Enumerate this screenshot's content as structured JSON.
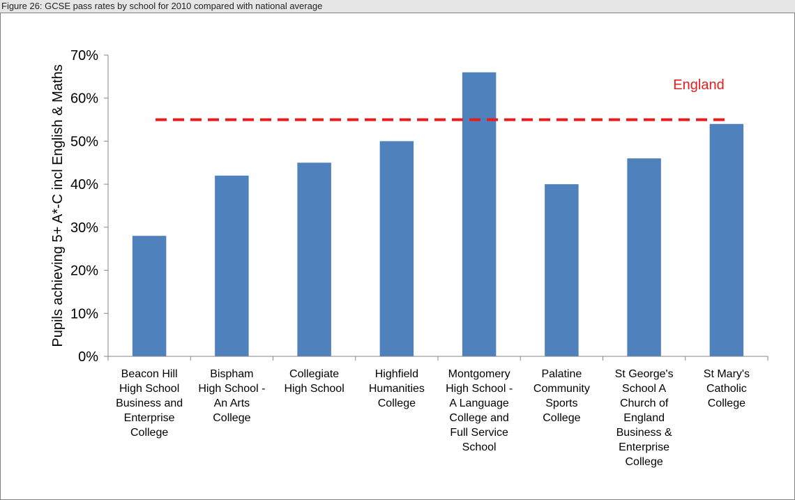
{
  "caption": "Figure 26: GCSE pass rates by school for 2010 compared with national average",
  "chart_data": {
    "type": "bar",
    "categories": [
      [
        "Beacon Hill",
        "High School",
        "Business and",
        "Enterprise",
        "College"
      ],
      [
        "Bispham",
        "High School -",
        "An Arts",
        "College"
      ],
      [
        "Collegiate",
        "High School"
      ],
      [
        "Highfield",
        "Humanities",
        "College"
      ],
      [
        "Montgomery",
        "High School -",
        "A Language",
        "College and",
        "Full Service",
        "School"
      ],
      [
        "Palatine",
        "Community",
        "Sports",
        "College"
      ],
      [
        "St George's",
        "School A",
        "Church of",
        "England",
        "Business &",
        "Enterprise",
        "College"
      ],
      [
        "St Mary's",
        "Catholic",
        "College"
      ]
    ],
    "values": [
      28,
      42,
      45,
      50,
      66,
      40,
      46,
      54
    ],
    "ylabel": "Pupils achieving 5+ A*-C incl English & Maths",
    "ylim": [
      0,
      70
    ],
    "yticks": [
      0,
      10,
      20,
      30,
      40,
      50,
      60,
      70
    ],
    "ytick_labels": [
      "0%",
      "10%",
      "20%",
      "30%",
      "40%",
      "50%",
      "60%",
      "70%"
    ],
    "bar_color": "#4f81bd",
    "reference_line": {
      "label": "England",
      "value": 55,
      "color": "#e81c1c",
      "style": "dashed"
    },
    "grid": false,
    "legend": "none"
  }
}
